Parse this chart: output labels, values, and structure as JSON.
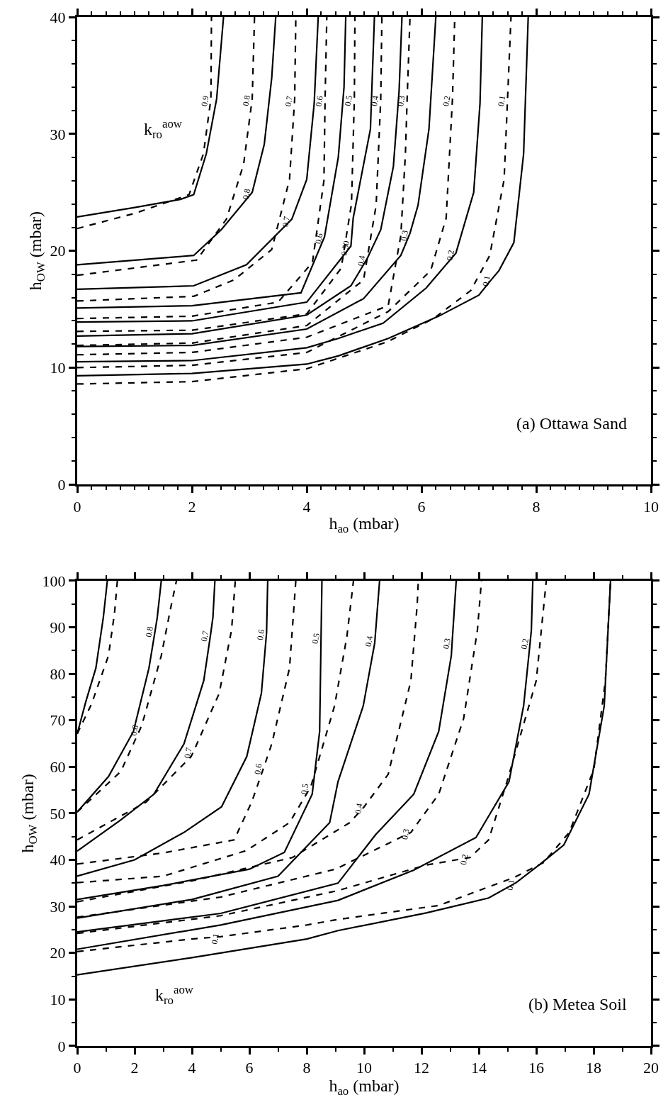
{
  "chart_data": [
    {
      "type": "line",
      "xlabel": "h$_{ao}$ (mbar)",
      "ylabel": "h$_{OW}$ (mbar)",
      "xlim": [
        0,
        10
      ],
      "ylim": [
        0,
        40
      ],
      "xticks": [
        0,
        2,
        4,
        6,
        8,
        10,
        {
          "value": 0.25,
          "label": null
        },
        {
          "value": 0.5,
          "label": null
        },
        {
          "value": 0.75,
          "label": null
        },
        {
          "value": 1,
          "label": null
        },
        {
          "value": 1.25,
          "label": null
        },
        {
          "value": 1.5,
          "label": null
        },
        {
          "value": 1.75,
          "label": null
        },
        {
          "value": 2.25,
          "label": null
        },
        {
          "value": 2.5,
          "label": null
        },
        {
          "value": 2.75,
          "label": null
        },
        {
          "value": 3,
          "label": null
        },
        {
          "value": 3.25,
          "label": null
        },
        {
          "value": 3.5,
          "label": null
        },
        {
          "value": 3.75,
          "label": null
        },
        {
          "value": 4.25,
          "label": null
        },
        {
          "value": 4.5,
          "label": null
        },
        {
          "value": 4.75,
          "label": null
        },
        {
          "value": 5,
          "label": null
        },
        {
          "value": 5.25,
          "label": null
        },
        {
          "value": 5.5,
          "label": null
        },
        {
          "value": 5.75,
          "label": null
        },
        {
          "value": 6.25,
          "label": null
        },
        {
          "value": 6.5,
          "label": null
        },
        {
          "value": 6.75,
          "label": null
        },
        {
          "value": 7,
          "label": null
        },
        {
          "value": 7.25,
          "label": null
        },
        {
          "value": 7.5,
          "label": null
        },
        {
          "value": 7.75,
          "label": null
        },
        {
          "value": 8.25,
          "label": null
        },
        {
          "value": 8.5,
          "label": null
        },
        {
          "value": 8.75,
          "label": null
        },
        {
          "value": 9,
          "label": null
        },
        {
          "value": 9.25,
          "label": null
        },
        {
          "value": 9.5,
          "label": null
        },
        {
          "value": 9.75,
          "label": null
        }
      ],
      "yticks": [
        0,
        10,
        20,
        30,
        40,
        {
          "value": 2,
          "label": null
        },
        {
          "value": 4,
          "label": null
        },
        {
          "value": 6,
          "label": null
        },
        {
          "value": 8,
          "label": null
        },
        {
          "value": 12,
          "label": null
        },
        {
          "value": 14,
          "label": null
        },
        {
          "value": 16,
          "label": null
        },
        {
          "value": 18,
          "label": null
        },
        {
          "value": 22,
          "label": null
        },
        {
          "value": 24,
          "label": null
        },
        {
          "value": 26,
          "label": null
        },
        {
          "value": 28,
          "label": null
        },
        {
          "value": 32,
          "label": null
        },
        {
          "value": 34,
          "label": null
        },
        {
          "value": 36,
          "label": null
        },
        {
          "value": 38,
          "label": null
        }
      ],
      "series": [
        {
          "color": "#000000",
          "line_style": "solid",
          "x": [
            0,
            1,
            1.8,
            2.03,
            2.25,
            2.43,
            2.55
          ],
          "values": [
            22.9,
            23.7,
            24.4,
            24.8,
            28.3,
            33,
            40
          ]
        },
        {
          "color": "#000000",
          "line_style": "dashed",
          "x": [
            0,
            1,
            1.95,
            2.2,
            2.33,
            2.34
          ],
          "values": [
            21.9,
            23.2,
            24.8,
            28.3,
            33,
            40
          ]
        },
        {
          "color": "#000000",
          "line_style": "solid",
          "x": [
            0,
            2.03,
            2.51,
            3.05,
            3.26,
            3.39,
            3.46
          ],
          "values": [
            18.8,
            19.6,
            21.8,
            25.0,
            29.1,
            34.8,
            40
          ]
        },
        {
          "color": "#000000",
          "line_style": "dashed",
          "x": [
            0,
            2.08,
            2.6,
            2.9,
            3.05,
            3.09
          ],
          "values": [
            17.9,
            19.2,
            22.7,
            27.4,
            33,
            40
          ]
        },
        {
          "color": "#000000",
          "line_style": "solid",
          "x": [
            0,
            2.03,
            2.95,
            3.74,
            4.0,
            4.13,
            4.2
          ],
          "values": [
            16.7,
            17.0,
            18.8,
            22.7,
            26.1,
            32.6,
            40
          ]
        },
        {
          "color": "#000000",
          "line_style": "dashed",
          "x": [
            0,
            2.03,
            2.73,
            3.39,
            3.7,
            3.79,
            3.81
          ],
          "values": [
            15.7,
            16.1,
            17.5,
            20.1,
            26.1,
            33,
            40
          ]
        },
        {
          "color": "#000000",
          "line_style": "solid",
          "x": [
            0,
            2,
            3.9,
            4.31,
            4.55,
            4.65,
            4.68
          ],
          "values": [
            15.1,
            15.3,
            16.4,
            21.2,
            28,
            34,
            40
          ]
        },
        {
          "color": "#000000",
          "line_style": "dashed",
          "x": [
            0,
            2,
            3.5,
            4.1,
            4.3,
            4.32,
            4.35
          ],
          "values": [
            14.2,
            14.4,
            15.6,
            19,
            26,
            33,
            40
          ]
        },
        {
          "color": "#000000",
          "line_style": "solid",
          "x": [
            0,
            2,
            4,
            4.77,
            4.81,
            5.11,
            5.18
          ],
          "values": [
            13.9,
            14.0,
            15.6,
            20.4,
            22.8,
            30.4,
            40
          ]
        },
        {
          "color": "#000000",
          "line_style": "dashed",
          "x": [
            0,
            2,
            4,
            4.6,
            4.78,
            4.83,
            4.84
          ],
          "values": [
            13.1,
            13.2,
            14.6,
            18.5,
            24,
            33,
            40
          ]
        },
        {
          "color": "#000000",
          "line_style": "solid",
          "x": [
            0,
            2,
            4,
            4.77,
            5.05,
            5.29,
            5.51,
            5.61,
            5.66
          ],
          "values": [
            12.7,
            12.9,
            14.5,
            17.0,
            19.3,
            21.8,
            27.2,
            33.7,
            40
          ]
        },
        {
          "color": "#000000",
          "line_style": "dashed",
          "x": [
            0,
            2,
            4,
            4.99,
            5.21,
            5.29,
            5.31
          ],
          "values": [
            11.9,
            12.1,
            13.6,
            17.5,
            23.9,
            33,
            40
          ]
        },
        {
          "color": "#000000",
          "line_style": "solid",
          "x": [
            0,
            2,
            4,
            4.99,
            5.64,
            5.8,
            5.94,
            6.13,
            6.25
          ],
          "values": [
            11.8,
            11.9,
            13.3,
            15.9,
            19.6,
            21.5,
            23.9,
            30.4,
            40
          ]
        },
        {
          "color": "#000000",
          "line_style": "dashed",
          "x": [
            0,
            2,
            4,
            5.42,
            5.64,
            5.72,
            5.75,
            5.8
          ],
          "values": [
            11.1,
            11.3,
            12.6,
            15.3,
            21.3,
            28.3,
            33,
            40
          ]
        },
        {
          "color": "#000000",
          "line_style": "solid",
          "x": [
            0,
            2,
            4,
            4.55,
            5.33,
            6.08,
            6.6,
            6.91,
            7.02,
            7.06
          ],
          "values": [
            10.5,
            10.6,
            11.7,
            12.5,
            13.8,
            16.8,
            19.8,
            25.0,
            32.6,
            40
          ]
        },
        {
          "color": "#000000",
          "line_style": "dashed",
          "x": [
            0,
            2,
            4,
            5.42,
            6.16,
            6.43,
            6.54,
            6.58
          ],
          "values": [
            10.0,
            10.2,
            11.3,
            14.8,
            18.3,
            22.8,
            33,
            40
          ]
        },
        {
          "color": "#000000",
          "line_style": "solid",
          "x": [
            0,
            2,
            4,
            4.55,
            5.42,
            6.3,
            7.0,
            7.23,
            7.35,
            7.61,
            7.78,
            7.86
          ],
          "values": [
            9.3,
            9.5,
            10.3,
            11.0,
            12.5,
            14.4,
            16.2,
            17.6,
            18.3,
            20.7,
            28.3,
            40
          ]
        },
        {
          "color": "#000000",
          "line_style": "dashed",
          "x": [
            0,
            2,
            4,
            5.4,
            6.21,
            6.86,
            7.19,
            7.44,
            7.5,
            7.56
          ],
          "values": [
            8.6,
            8.8,
            9.9,
            12.2,
            14.2,
            16.6,
            19.6,
            26.1,
            33,
            40
          ]
        }
      ],
      "annotations": [
        "k$_{ro}$$^{aow}$",
        "(a) Ottawa Sand",
        {
          "text": "0.9",
          "x": 2.33,
          "y": 33
        },
        {
          "text": "0.8",
          "x": 3.05,
          "y": 33
        },
        {
          "text": "0.7",
          "x": 3.79,
          "y": 33
        },
        {
          "text": "0.6",
          "x": 4.32,
          "y": 33
        },
        {
          "text": "0.5",
          "x": 4.83,
          "y": 33
        },
        {
          "text": "0.4",
          "x": 5.29,
          "y": 33
        },
        {
          "text": "0.3",
          "x": 5.75,
          "y": 33
        },
        {
          "text": "0.2",
          "x": 6.54,
          "y": 33
        },
        {
          "text": "0.1",
          "x": 7.5,
          "y": 33
        },
        {
          "text": "0.8",
          "x": 3.05,
          "y": 25.0
        },
        {
          "text": "0.7",
          "x": 3.74,
          "y": 22.7
        },
        {
          "text": "0.6",
          "x": 4.31,
          "y": 21.2
        },
        {
          "text": "0.50",
          "x": 4.77,
          "y": 20.4
        },
        {
          "text": "0.4",
          "x": 5.05,
          "y": 19.3
        },
        {
          "text": "0.3",
          "x": 5.8,
          "y": 21.5
        },
        {
          "text": "0.2",
          "x": 6.6,
          "y": 19.8
        },
        {
          "text": "0.1",
          "x": 7.23,
          "y": 17.6
        }
      ]
    },
    {
      "type": "line",
      "xlabel": "h$_{ao}$ (mbar)",
      "ylabel": "h$_{OW}$ (mbar)",
      "xlim": [
        0,
        20
      ],
      "ylim": [
        0,
        100
      ],
      "xticks": [
        0,
        2,
        4,
        6,
        8,
        10,
        12,
        14,
        16,
        18,
        20,
        {
          "value": 1,
          "label": null
        },
        {
          "value": 3,
          "label": null
        },
        {
          "value": 5,
          "label": null
        },
        {
          "value": 7,
          "label": null
        },
        {
          "value": 9,
          "label": null
        },
        {
          "value": 11,
          "label": null
        },
        {
          "value": 13,
          "label": null
        },
        {
          "value": 15,
          "label": null
        },
        {
          "value": 17,
          "label": null
        },
        {
          "value": 19,
          "label": null
        }
      ],
      "yticks": [
        0,
        10,
        20,
        30,
        40,
        50,
        60,
        70,
        80,
        90,
        100,
        {
          "value": 5,
          "label": null
        },
        {
          "value": 15,
          "label": null
        },
        {
          "value": 25,
          "label": null
        },
        {
          "value": 35,
          "label": null
        },
        {
          "value": 45,
          "label": null
        },
        {
          "value": 55,
          "label": null
        },
        {
          "value": 65,
          "label": null
        },
        {
          "value": 75,
          "label": null
        },
        {
          "value": 85,
          "label": null
        },
        {
          "value": 95,
          "label": null
        }
      ],
      "series": [
        {
          "color": "#000000",
          "line_style": "solid",
          "x": [
            0,
            0.3,
            0.65,
            0.91,
            1.05
          ],
          "values": [
            67.1,
            74,
            81.2,
            92.1,
            100
          ]
        },
        {
          "color": "#000000",
          "line_style": "dashed",
          "x": [
            0,
            0.5,
            1.09,
            1.3,
            1.4
          ],
          "values": [
            67.1,
            73.5,
            83.9,
            93,
            100
          ]
        },
        {
          "color": "#000000",
          "line_style": "solid",
          "x": [
            0,
            1.09,
            1.96,
            2.5,
            2.72,
            2.79,
            2.93
          ],
          "values": [
            50.3,
            57.9,
            67.6,
            81.2,
            89.4,
            92.1,
            100
          ]
        },
        {
          "color": "#000000",
          "line_style": "dashed",
          "x": [
            0,
            1.52,
            2.2,
            2.32,
            2.93,
            3.28,
            3.46
          ],
          "values": [
            50.3,
            59.0,
            68.2,
            70.4,
            83.9,
            94.8,
            100
          ]
        },
        {
          "color": "#000000",
          "line_style": "solid",
          "x": [
            0,
            1.52,
            2.67,
            3.72,
            4.41,
            4.65,
            4.73,
            4.8
          ],
          "values": [
            41.9,
            48.6,
            54.1,
            64.9,
            78.5,
            88.5,
            92.1,
            100
          ]
        },
        {
          "color": "#000000",
          "line_style": "dashed",
          "x": [
            0,
            2.4,
            3.97,
            4.07,
            4.95,
            5.38,
            5.51
          ],
          "values": [
            44.3,
            52.4,
            62.2,
            63.5,
            75.8,
            89.4,
            100
          ]
        },
        {
          "color": "#000000",
          "line_style": "solid",
          "x": [
            0,
            2,
            3.72,
            5.03,
            5.91,
            6.42,
            6.6,
            6.64
          ],
          "values": [
            36.5,
            40,
            45.9,
            51.4,
            62.2,
            75.8,
            88.8,
            100
          ]
        },
        {
          "color": "#000000",
          "line_style": "dashed",
          "x": [
            0,
            3,
            5.47,
            6.08,
            6.51,
            6.78,
            7.4,
            7.62
          ],
          "values": [
            39.1,
            41.5,
            44.3,
            52.4,
            60.0,
            64.9,
            81.2,
            100
          ]
        },
        {
          "color": "#000000",
          "line_style": "solid",
          "x": [
            0,
            3,
            6,
            7.22,
            8.19,
            8.45,
            8.5,
            8.53
          ],
          "values": [
            31.5,
            34.5,
            38,
            41.6,
            54.1,
            67.6,
            88.0,
            100
          ]
        },
        {
          "color": "#000000",
          "line_style": "dashed",
          "x": [
            0,
            3,
            5.9,
            7.4,
            8.14,
            8.97,
            9.4,
            9.63
          ],
          "values": [
            35.1,
            36.5,
            42,
            48,
            55.7,
            73.1,
            88,
            100
          ]
        },
        {
          "color": "#000000",
          "line_style": "solid",
          "x": [
            0,
            4,
            7,
            8.8,
            9.09,
            9.97,
            10.37,
            10.38,
            10.54
          ],
          "values": [
            27.5,
            31.5,
            36.5,
            48,
            56.8,
            73.1,
            86.6,
            87.4,
            100
          ]
        },
        {
          "color": "#000000",
          "line_style": "dashed",
          "x": [
            0,
            4,
            7.5,
            9.5,
            10.0,
            10.84,
            11.63,
            11.85,
            11.89
          ],
          "values": [
            31.0,
            35.5,
            40.5,
            48,
            51.4,
            58.4,
            78.5,
            94.8,
            100
          ]
        },
        {
          "color": "#000000",
          "line_style": "solid",
          "x": [
            0,
            5,
            9.09,
            10.4,
            11.73,
            12.6,
            13.04,
            13.07,
            13.21
          ],
          "values": [
            24.5,
            28.5,
            35,
            45.4,
            54.1,
            67.6,
            83.9,
            86.9,
            100
          ]
        },
        {
          "color": "#000000",
          "line_style": "dashed",
          "x": [
            0,
            5,
            9,
            11.63,
            12.6,
            13.47,
            13.95,
            14.09
          ],
          "values": [
            27.7,
            32,
            38,
            45.9,
            54.1,
            70.4,
            89.4,
            100
          ]
        },
        {
          "color": "#000000",
          "line_style": "solid",
          "x": [
            0,
            5,
            9.09,
            11.73,
            13.9,
            15.05,
            15.56,
            15.79,
            15.83,
            15.88
          ],
          "values": [
            20.8,
            26,
            31.3,
            37.8,
            44.8,
            56.8,
            73.1,
            86.9,
            89.4,
            100
          ]
        },
        {
          "color": "#000000",
          "line_style": "dashed",
          "x": [
            0,
            5,
            9.09,
            12.16,
            13.69,
            14.34,
            14.98,
            16.0,
            16.35
          ],
          "values": [
            24.2,
            28,
            33.4,
            38.9,
            40.5,
            44.3,
            56.8,
            78.5,
            100
          ]
        },
        {
          "color": "#000000",
          "line_style": "solid",
          "x": [
            0,
            4,
            8,
            9.09,
            12.16,
            14.34,
            15.3,
            16.1,
            16.96,
            17.84,
            18.37,
            18.59
          ],
          "values": [
            15.3,
            19,
            23,
            24.8,
            28.6,
            31.8,
            35.1,
            38.9,
            43.2,
            54.1,
            73.1,
            100
          ]
        },
        {
          "color": "#000000",
          "line_style": "dashed",
          "x": [
            0,
            4,
            5.0,
            8,
            9.09,
            12.6,
            15.22,
            16.25,
            17.15,
            18.01,
            18.41,
            18.59
          ],
          "values": [
            20.3,
            23,
            23.5,
            26,
            27.2,
            30.2,
            36.2,
            39.4,
            45.9,
            59.5,
            78.5,
            100
          ]
        }
      ],
      "annotations": [
        "k$_{ro}$$^{aow}$",
        "(b) Metea Soil",
        {
          "text": "0.8",
          "x": 2.72,
          "y": 89.4
        },
        {
          "text": "0.7",
          "x": 4.65,
          "y": 88.5
        },
        {
          "text": "0.6",
          "x": 6.6,
          "y": 88.8
        },
        {
          "text": "0.5",
          "x": 8.5,
          "y": 88.0
        },
        {
          "text": "0.4",
          "x": 10.38,
          "y": 87.4
        },
        {
          "text": "0.3",
          "x": 13.07,
          "y": 86.9
        },
        {
          "text": "0.2",
          "x": 15.79,
          "y": 86.9
        },
        {
          "text": "0.8",
          "x": 2.2,
          "y": 68.2
        },
        {
          "text": "0.7",
          "x": 4.07,
          "y": 63.5
        },
        {
          "text": "0.6",
          "x": 6.51,
          "y": 60.0
        },
        {
          "text": "0.5",
          "x": 8.14,
          "y": 55.7
        },
        {
          "text": "0.4",
          "x": 10.0,
          "y": 51.4
        },
        {
          "text": "0.3",
          "x": 11.63,
          "y": 45.9
        },
        {
          "text": "0.2",
          "x": 13.69,
          "y": 40.5
        },
        {
          "text": "0.1",
          "x": 15.3,
          "y": 35.1
        },
        {
          "text": "0.1",
          "x": 5.0,
          "y": 23.5
        }
      ]
    }
  ]
}
